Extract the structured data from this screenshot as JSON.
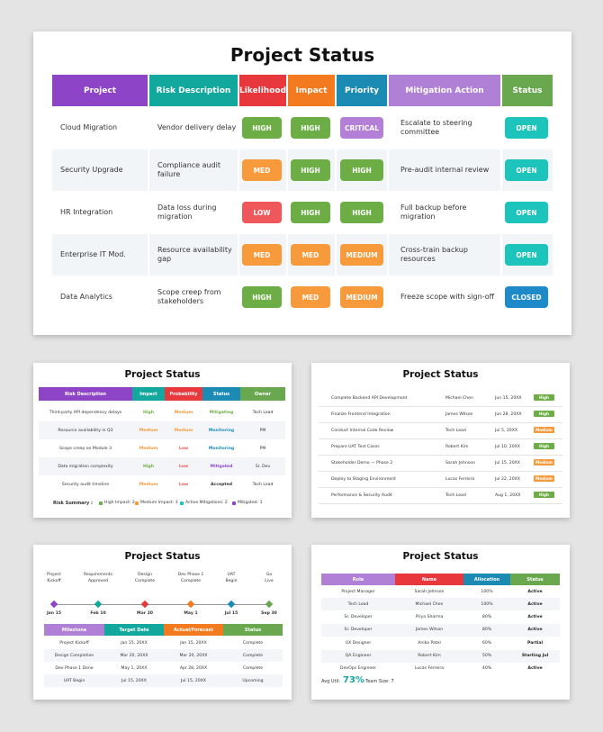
{
  "colors": {
    "purple": "#8e44c6",
    "teal": "#13a89e",
    "red": "#e8383d",
    "orange": "#f47a20",
    "blue": "#1c8bb4",
    "lilac": "#b07fd6",
    "green": "#6aa84f",
    "pill_green": "#6cae45",
    "pill_orange": "#f69a3b",
    "pill_red": "#f0575b",
    "pill_purple": "#b47fd7",
    "pill_teal": "#1cc4bb",
    "pill_blue": "#1f8ac9"
  },
  "main": {
    "title": "Project Status",
    "headers": [
      "Project",
      "Risk Description",
      "Likelihood",
      "Impact",
      "Priority",
      "Mitigation Action",
      "Status"
    ],
    "rows": [
      {
        "project": "Cloud Migration",
        "risk": "Vendor delivery delay",
        "likelihood": "HIGH",
        "impact": "HIGH",
        "priority": "CRITICAL",
        "mitigation": "Escalate to steering committee",
        "status": "OPEN"
      },
      {
        "project": "Security Upgrade",
        "risk": "Compliance audit failure",
        "likelihood": "MED",
        "impact": "HIGH",
        "priority": "HIGH",
        "mitigation": "Pre-audit internal review",
        "status": "OPEN"
      },
      {
        "project": "HR Integration",
        "risk": "Data loss during migration",
        "likelihood": "LOW",
        "impact": "HIGH",
        "priority": "HIGH",
        "mitigation": "Full backup before migration",
        "status": "OPEN"
      },
      {
        "project": "Enterprise IT Mod.",
        "risk": "Resource availability gap",
        "likelihood": "MED",
        "impact": "MED",
        "priority": "MEDIUM",
        "mitigation": "Cross-train backup resources",
        "status": "OPEN"
      },
      {
        "project": "Data Analytics",
        "risk": "Scope creep from stakeholders",
        "likelihood": "HIGH",
        "impact": "MED",
        "priority": "MEDIUM",
        "mitigation": "Freeze scope with sign-off",
        "status": "CLOSED"
      }
    ]
  },
  "risk_slide": {
    "title": "Project Status",
    "headers": [
      "Risk Description",
      "Impact",
      "Probability",
      "Status",
      "Owner"
    ],
    "rows": [
      {
        "risk": "Third-party API dependency delays",
        "impact": "High",
        "prob": "Medium",
        "status": "Mitigating",
        "owner": "Tech Lead"
      },
      {
        "risk": "Resource availability in Q3",
        "impact": "Medium",
        "prob": "Medium",
        "status": "Monitoring",
        "owner": "PM"
      },
      {
        "risk": "Scope creep on Module 3",
        "impact": "Medium",
        "prob": "Low",
        "status": "Monitoring",
        "owner": "PM"
      },
      {
        "risk": "Data migration complexity",
        "impact": "High",
        "prob": "Low",
        "status": "Mitigated",
        "owner": "Sr. Dev"
      },
      {
        "risk": "Security audit timeline",
        "impact": "Medium",
        "prob": "Low",
        "status": "Accepted",
        "owner": "Tech Lead"
      }
    ],
    "summary_label": "Risk Summary :",
    "summary": [
      {
        "text": "High Impact: 2",
        "color": "#6cae45"
      },
      {
        "text": "Medium Impact: 3",
        "color": "#f69a3b"
      },
      {
        "text": "Active Mitigations: 2",
        "color": "#1cc4bb"
      },
      {
        "text": "Mitigated: 1",
        "color": "#8e44c6"
      }
    ]
  },
  "task_slide": {
    "title": "Project Status",
    "rows": [
      {
        "task": "Complete Backend API Development",
        "owner": "Michael Chen",
        "date": "Jun 15, 20XX",
        "priority": "High"
      },
      {
        "task": "Finalize Frontend Integration",
        "owner": "James Wilson",
        "date": "Jun 28, 20XX",
        "priority": "High"
      },
      {
        "task": "Conduct Internal Code Review",
        "owner": "Tech Lead",
        "date": "Jul 5, 20XX",
        "priority": "Medium"
      },
      {
        "task": "Prepare UAT Test Cases",
        "owner": "Robert Kim",
        "date": "Jul 10, 20XX",
        "priority": "High"
      },
      {
        "task": "Stakeholder Demo — Phase 2",
        "owner": "Sarah Johnson",
        "date": "Jul 15, 20XX",
        "priority": "Medium"
      },
      {
        "task": "Deploy to Staging Environment",
        "owner": "Lucas Ferreira",
        "date": "Jul 22, 20XX",
        "priority": "Medium"
      },
      {
        "task": "Performance & Security Audit",
        "owner": "Tech Lead",
        "date": "Aug 1, 20XX",
        "priority": "High"
      }
    ]
  },
  "timeline_slide": {
    "title": "Project Status",
    "milestones": [
      {
        "label1": "Project",
        "label2": "Kickoff",
        "date": "Jan 15",
        "color": "#8e44c6"
      },
      {
        "label1": "Requirements",
        "label2": "Approved",
        "date": "Feb 10",
        "color": "#13a89e"
      },
      {
        "label1": "Design",
        "label2": "Complete",
        "date": "Mar 20",
        "color": "#e8383d"
      },
      {
        "label1": "Dev Phase 1",
        "label2": "Complete",
        "date": "May 1",
        "color": "#f47a20"
      },
      {
        "label1": "UAT",
        "label2": "Begin",
        "date": "Jul 15",
        "color": "#1c8bb4"
      },
      {
        "label1": "Go",
        "label2": "Live",
        "date": "Sep 30",
        "color": "#6aa84f"
      }
    ],
    "headers": [
      "Milestone",
      "Target Date",
      "Actual/Forecast",
      "Status"
    ],
    "rows": [
      {
        "m": "Project Kickoff",
        "t": "Jan 15, 20XX",
        "a": "Jan 15, 20XX",
        "s": "Complete"
      },
      {
        "m": "Design Completion",
        "t": "Mar 20, 20XX",
        "a": "Mar 20, 20XX",
        "s": "Complete"
      },
      {
        "m": "Dev Phase 1 Done",
        "t": "May 1, 20XX",
        "a": "Apr 28, 20XX",
        "s": "Complete"
      },
      {
        "m": "UAT Begin",
        "t": "Jul 15, 20XX",
        "a": "Jul 15, 20XX",
        "s": "Upcoming"
      }
    ]
  },
  "team_slide": {
    "title": "Project Status",
    "headers": [
      "Role",
      "Name",
      "Allocation",
      "Status"
    ],
    "rows": [
      {
        "role": "Project Manager",
        "name": "Sarah Johnson",
        "alloc": "100%",
        "status": "Active"
      },
      {
        "role": "Tech Lead",
        "name": "Michael Chen",
        "alloc": "100%",
        "status": "Active"
      },
      {
        "role": "Sr. Developer",
        "name": "Priya Sharma",
        "alloc": "80%",
        "status": "Active"
      },
      {
        "role": "Sr. Developer",
        "name": "James Wilson",
        "alloc": "80%",
        "status": "Active"
      },
      {
        "role": "UX Designer",
        "name": "Anika Patel",
        "alloc": "60%",
        "status": "Partial"
      },
      {
        "role": "QA Engineer",
        "name": "Robert Kim",
        "alloc": "50%",
        "status": "Starting Jul"
      },
      {
        "role": "DevOps Engineer",
        "name": "Lucas Ferreira",
        "alloc": "40%",
        "status": "Active"
      }
    ],
    "avg_label": "Avg Util:",
    "avg_value": "73%",
    "team_size": "Team Size: 7"
  }
}
